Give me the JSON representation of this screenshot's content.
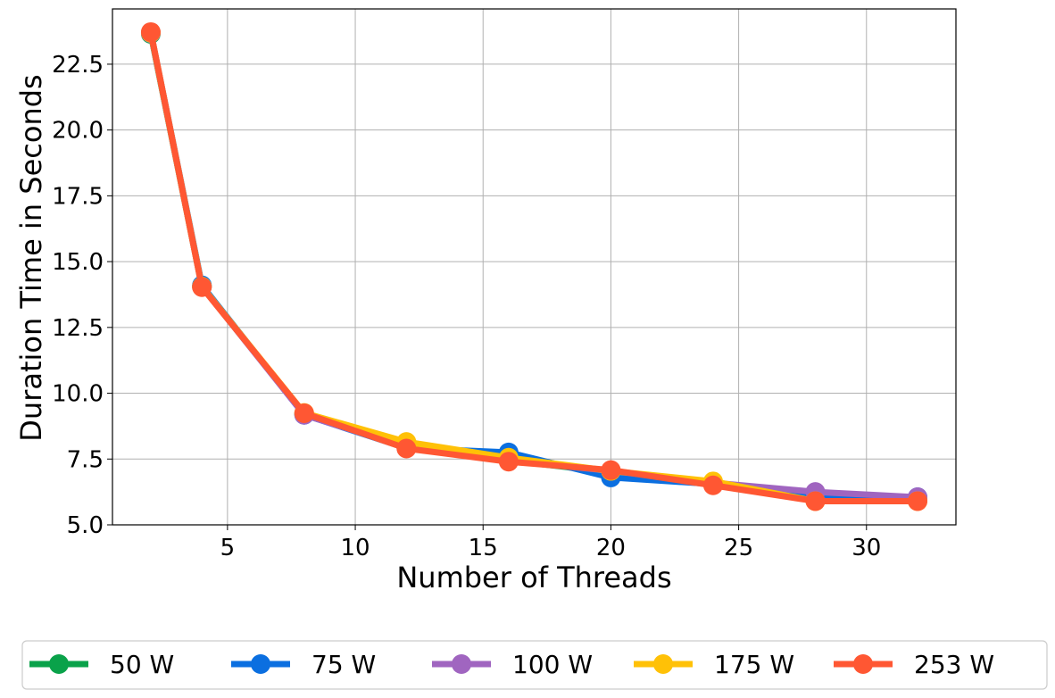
{
  "chart_data": {
    "type": "line",
    "title": "",
    "xlabel": "Number of Threads",
    "ylabel": "Duration Time in Seconds",
    "xlim": [
      0.5,
      33.5
    ],
    "ylim": [
      5.0,
      24.6
    ],
    "xticks": [
      5,
      10,
      15,
      20,
      25,
      30
    ],
    "xtick_labels": [
      "5",
      "10",
      "15",
      "20",
      "25",
      "30"
    ],
    "yticks": [
      5.0,
      7.5,
      10.0,
      12.5,
      15.0,
      17.5,
      20.0,
      22.5
    ],
    "ytick_labels": [
      "5.0",
      "7.5",
      "10.0",
      "12.5",
      "15.0",
      "17.5",
      "20.0",
      "22.5"
    ],
    "grid": true,
    "legend_position": "bottom-outside",
    "x": [
      2,
      4,
      8,
      12,
      16,
      20,
      24,
      28,
      32
    ],
    "series": [
      {
        "name": "50 W",
        "color": "#0aa24a",
        "values": [
          23.65,
          14.05,
          9.22,
          7.95,
          7.45,
          7.0,
          6.55,
          5.95,
          5.95
        ]
      },
      {
        "name": "75 W",
        "color": "#0b6fe0",
        "values": [
          23.7,
          14.1,
          9.18,
          7.92,
          7.75,
          6.8,
          6.55,
          6.05,
          6.05
        ]
      },
      {
        "name": "100 W",
        "color": "#a065c0",
        "values": [
          23.68,
          14.05,
          9.18,
          7.95,
          7.45,
          7.05,
          6.6,
          6.25,
          6.05
        ]
      },
      {
        "name": "175 W",
        "color": "#ffc107",
        "values": [
          23.7,
          14.05,
          9.25,
          8.15,
          7.55,
          7.05,
          6.65,
          5.9,
          5.9
        ]
      },
      {
        "name": "253 W",
        "color": "#ff5733",
        "values": [
          23.72,
          14.03,
          9.24,
          7.9,
          7.4,
          7.08,
          6.5,
          5.9,
          5.9
        ]
      }
    ]
  }
}
